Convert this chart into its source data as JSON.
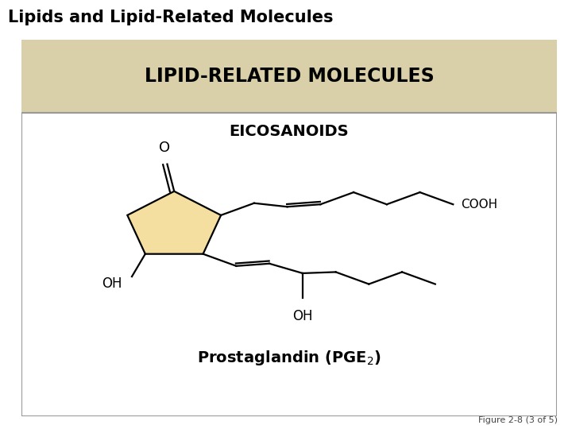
{
  "title_bar_color": "#6aaa4f",
  "title_text": "Lipids and Lipid-Related Molecules",
  "title_text_color": "#000000",
  "bg_color": "#ffffff",
  "card_border_color": "#999999",
  "header_bg_color": "#d9cfa8",
  "header_text": "LIPID-RELATED MOLECULES",
  "header_text_color": "#000000",
  "subheader_text": "EICOSANOIDS",
  "subheader_color": "#000000",
  "figure_label": "Figure 2-8 (3 of 5)",
  "cyclopentane_fill": "#f5dfa0",
  "bond_color": "#000000"
}
